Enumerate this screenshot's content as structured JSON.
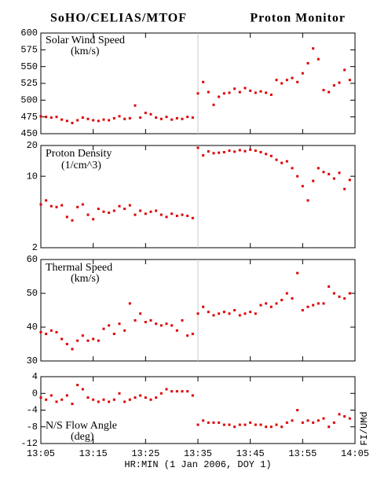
{
  "header": {
    "left": "SoHO/CELIAS/MTOF",
    "right": "Proton Monitor"
  },
  "xlabel": "HR:MIN (1 Jan 2006, DOY 1)",
  "credit": "FI/UMd",
  "chart_data": [
    {
      "type": "scatter",
      "label": [
        "Solar Wind Speed",
        "(km/s)"
      ],
      "color": "#dd0000",
      "vline": 815,
      "ylim": [
        450,
        600
      ],
      "yticks": [
        450,
        475,
        500,
        525,
        550,
        575,
        600
      ],
      "x": [
        785,
        786,
        787,
        788,
        789,
        790,
        791,
        792,
        793,
        794,
        795,
        796,
        797,
        798,
        799,
        800,
        801,
        802,
        803,
        804,
        805,
        806,
        807,
        808,
        809,
        810,
        811,
        812,
        813,
        814,
        815,
        816,
        817,
        818,
        819,
        820,
        821,
        822,
        823,
        824,
        825,
        826,
        827,
        828,
        829,
        830,
        831,
        832,
        833,
        834,
        835,
        836,
        837,
        838,
        839,
        840,
        841,
        842,
        843,
        844
      ],
      "values": [
        476,
        475,
        474,
        475,
        471,
        469,
        466,
        470,
        474,
        472,
        470,
        469,
        471,
        470,
        473,
        476,
        472,
        473,
        492,
        474,
        481,
        479,
        474,
        472,
        475,
        471,
        473,
        472,
        475,
        474,
        510,
        527,
        512,
        493,
        505,
        510,
        511,
        517,
        512,
        518,
        514,
        511,
        513,
        511,
        508,
        530,
        525,
        530,
        533,
        527,
        540,
        555,
        577,
        561,
        515,
        512,
        522,
        526,
        545,
        530
      ]
    },
    {
      "type": "scatter",
      "label": [
        "Proton Density",
        "(1/cm^3)"
      ],
      "color": "#dd0000",
      "vline": 815,
      "log": true,
      "ylim": [
        2,
        20
      ],
      "yticks": [
        2,
        10,
        20
      ],
      "x": [
        785,
        786,
        787,
        788,
        789,
        790,
        791,
        792,
        793,
        794,
        795,
        796,
        797,
        798,
        799,
        800,
        801,
        802,
        803,
        804,
        805,
        806,
        807,
        808,
        809,
        810,
        811,
        812,
        813,
        814,
        815,
        816,
        817,
        818,
        819,
        820,
        821,
        822,
        823,
        824,
        825,
        826,
        827,
        828,
        829,
        830,
        831,
        832,
        833,
        834,
        835,
        836,
        837,
        838,
        839,
        840,
        841,
        842,
        843,
        844
      ],
      "values": [
        5.3,
        5.8,
        5.1,
        5.0,
        5.2,
        4.0,
        3.7,
        5.0,
        5.3,
        4.2,
        3.8,
        4.8,
        4.5,
        4.4,
        4.6,
        5.1,
        4.8,
        5.2,
        4.2,
        4.6,
        4.3,
        4.5,
        4.6,
        4.2,
        4.0,
        4.3,
        4.1,
        4.2,
        4.1,
        3.9,
        19,
        16,
        17.5,
        16.8,
        17,
        17.2,
        17.8,
        17.4,
        18,
        17.6,
        18.2,
        17.8,
        17.2,
        16.5,
        15.8,
        14.5,
        13.5,
        14,
        12,
        10,
        8,
        5.8,
        9,
        12,
        11,
        10.5,
        9.5,
        10.8,
        7.5,
        9.2
      ]
    },
    {
      "type": "scatter",
      "label": [
        "Thermal Speed",
        "(km/s)"
      ],
      "color": "#dd0000",
      "vline": 815,
      "ylim": [
        30,
        60
      ],
      "yticks": [
        30,
        40,
        50,
        60
      ],
      "x": [
        785,
        786,
        787,
        788,
        789,
        790,
        791,
        792,
        793,
        794,
        795,
        796,
        797,
        798,
        799,
        800,
        801,
        802,
        803,
        804,
        805,
        806,
        807,
        808,
        809,
        810,
        811,
        812,
        813,
        814,
        815,
        816,
        817,
        818,
        819,
        820,
        821,
        822,
        823,
        824,
        825,
        826,
        827,
        828,
        829,
        830,
        831,
        832,
        833,
        834,
        835,
        836,
        837,
        838,
        839,
        840,
        841,
        842,
        843,
        844
      ],
      "values": [
        38.5,
        38,
        39,
        38.5,
        36.5,
        35,
        33.5,
        36,
        37.5,
        36,
        36.5,
        36,
        39.5,
        40.5,
        38,
        41,
        39,
        47,
        42,
        44,
        41.5,
        42,
        41,
        40.5,
        41,
        40.5,
        39,
        42,
        37.5,
        38,
        44,
        46,
        44.5,
        43.5,
        44,
        44.5,
        44,
        45,
        43.5,
        44,
        44.5,
        44,
        46.5,
        47,
        46,
        47,
        48,
        50,
        48.5,
        56,
        45,
        46,
        46.5,
        47,
        47,
        52,
        50,
        49,
        48.5,
        50
      ]
    },
    {
      "type": "scatter",
      "label": [
        "N/S Flow Angle",
        "(deg)"
      ],
      "color": "#dd0000",
      "ylim": [
        -12,
        4
      ],
      "yticks": [
        4,
        0,
        -4,
        -8,
        -12
      ],
      "xlim": [
        785,
        845
      ],
      "xticks": [
        {
          "value": 785,
          "label": "13:05"
        },
        {
          "value": 795,
          "label": "13:15"
        },
        {
          "value": 805,
          "label": "13:25"
        },
        {
          "value": 815,
          "label": "13:35"
        },
        {
          "value": 825,
          "label": "13:45"
        },
        {
          "value": 835,
          "label": "13:55"
        },
        {
          "value": 845,
          "label": "14:05"
        }
      ],
      "x": [
        785,
        786,
        787,
        788,
        789,
        790,
        791,
        792,
        793,
        794,
        795,
        796,
        797,
        798,
        799,
        800,
        801,
        802,
        803,
        804,
        805,
        806,
        807,
        808,
        809,
        810,
        811,
        812,
        813,
        814,
        815,
        816,
        817,
        818,
        819,
        820,
        821,
        822,
        823,
        824,
        825,
        826,
        827,
        828,
        829,
        830,
        831,
        832,
        833,
        834,
        835,
        836,
        837,
        838,
        839,
        840,
        841,
        842,
        843,
        844
      ],
      "values": [
        -1,
        -1.5,
        -0.5,
        -2,
        -1.5,
        -0.5,
        -2.5,
        2,
        1,
        -1,
        -1.5,
        -2,
        -1.5,
        -2,
        -1.5,
        0,
        -2,
        -1.5,
        -1,
        -0.5,
        -1,
        -1.5,
        -1,
        0,
        1,
        0.5,
        0.5,
        0.5,
        0.5,
        -0.5,
        -7.5,
        -6.5,
        -7,
        -7,
        -7,
        -7.5,
        -7.5,
        -8,
        -7.5,
        -7.5,
        -7,
        -7.5,
        -7.5,
        -8,
        -8,
        -7.5,
        -8,
        -7,
        -6.5,
        -4,
        -7,
        -6.5,
        -7,
        -6.5,
        -6,
        -8,
        -7,
        -5,
        -5.5,
        -6
      ]
    }
  ]
}
